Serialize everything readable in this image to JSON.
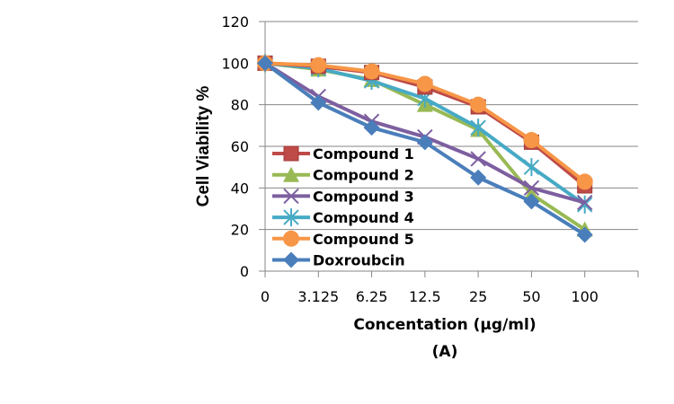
{
  "chart_data": {
    "type": "line",
    "title": "",
    "xlabel": "Concentation (µg/ml)",
    "sublabel": "(A)",
    "ylabel": "Cell Viability %",
    "categories": [
      "0",
      "3.125",
      "6.25",
      "12.5",
      "25",
      "50",
      "100"
    ],
    "y_ticks": [
      "0",
      "20",
      "40",
      "60",
      "80",
      "100",
      "120"
    ],
    "ylim": [
      0,
      120
    ],
    "grid": true,
    "legend_position": "left-inside-bottom",
    "series": [
      {
        "name": "Compound 1",
        "color": "#BE4B48",
        "marker": "square",
        "values": [
          100,
          98.5,
          95.5,
          88.5,
          79,
          62,
          41
        ]
      },
      {
        "name": "Compound 2",
        "color": "#98B954",
        "marker": "triangle",
        "values": [
          100,
          97,
          92,
          80,
          68,
          37,
          20
        ]
      },
      {
        "name": "Compound 3",
        "color": "#7D5FA0",
        "marker": "x",
        "values": [
          100,
          84,
          72,
          64.5,
          54,
          40,
          33
        ]
      },
      {
        "name": "Compound 4",
        "color": "#46AAC5",
        "marker": "star",
        "values": [
          100,
          97.5,
          91.5,
          83,
          69,
          50,
          32
        ]
      },
      {
        "name": "Compound 5",
        "color": "#F79646",
        "marker": "circle",
        "values": [
          100,
          99,
          96,
          90,
          80,
          63,
          43
        ]
      },
      {
        "name": "Doxroubcin",
        "color": "#4A7EBB",
        "marker": "diamond",
        "values": [
          100,
          81,
          69,
          62,
          45,
          33.5,
          17.5
        ]
      }
    ]
  }
}
